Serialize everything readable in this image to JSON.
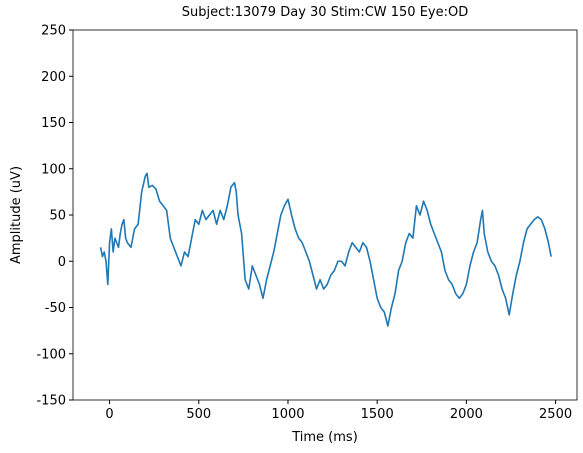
{
  "chart_data": {
    "type": "line",
    "title": "Subject:13079 Day 30 Stim:CW 150 Eye:OD",
    "xlabel": "Time (ms)",
    "ylabel": "Amplitude (uV)",
    "x": [
      -50,
      -40,
      -30,
      -20,
      -10,
      0,
      10,
      20,
      30,
      40,
      50,
      60,
      70,
      80,
      90,
      100,
      120,
      140,
      160,
      180,
      200,
      210,
      220,
      240,
      260,
      280,
      300,
      320,
      340,
      360,
      380,
      400,
      420,
      440,
      460,
      480,
      500,
      520,
      540,
      560,
      580,
      600,
      620,
      640,
      660,
      680,
      700,
      710,
      720,
      740,
      750,
      760,
      780,
      800,
      820,
      840,
      860,
      880,
      900,
      920,
      940,
      960,
      980,
      1000,
      1020,
      1040,
      1060,
      1080,
      1100,
      1120,
      1140,
      1160,
      1180,
      1200,
      1220,
      1240,
      1260,
      1280,
      1300,
      1320,
      1340,
      1360,
      1380,
      1400,
      1420,
      1440,
      1460,
      1480,
      1500,
      1520,
      1540,
      1560,
      1580,
      1600,
      1620,
      1640,
      1660,
      1680,
      1700,
      1720,
      1740,
      1760,
      1780,
      1800,
      1820,
      1840,
      1860,
      1880,
      1900,
      1920,
      1940,
      1960,
      1980,
      2000,
      2020,
      2040,
      2060,
      2080,
      2090,
      2100,
      2120,
      2140,
      2160,
      2180,
      2200,
      2220,
      2240,
      2260,
      2280,
      2300,
      2320,
      2340,
      2360,
      2380,
      2400,
      2420,
      2440,
      2460,
      2470,
      2475
    ],
    "series": [
      {
        "name": "amplitude",
        "color": "#1f77b4",
        "values": [
          15,
          5,
          10,
          0,
          -25,
          20,
          35,
          10,
          25,
          20,
          15,
          30,
          40,
          45,
          25,
          20,
          15,
          35,
          40,
          75,
          92,
          95,
          80,
          82,
          78,
          65,
          60,
          55,
          25,
          15,
          5,
          -5,
          10,
          5,
          25,
          45,
          40,
          55,
          45,
          50,
          55,
          40,
          55,
          45,
          60,
          80,
          85,
          75,
          50,
          30,
          5,
          -20,
          -30,
          -5,
          -15,
          -25,
          -40,
          -20,
          -5,
          10,
          30,
          50,
          60,
          67,
          50,
          35,
          25,
          20,
          10,
          0,
          -15,
          -30,
          -20,
          -30,
          -25,
          -15,
          -10,
          0,
          0,
          -5,
          10,
          20,
          15,
          10,
          20,
          15,
          0,
          -20,
          -40,
          -50,
          -55,
          -70,
          -50,
          -35,
          -10,
          0,
          20,
          30,
          25,
          60,
          50,
          65,
          55,
          40,
          30,
          20,
          10,
          -10,
          -20,
          -25,
          -35,
          -40,
          -35,
          -25,
          -5,
          10,
          20,
          45,
          55,
          30,
          10,
          0,
          -5,
          -15,
          -30,
          -40,
          -58,
          -35,
          -15,
          0,
          20,
          35,
          40,
          45,
          48,
          45,
          35,
          20,
          10,
          5
        ]
      }
    ],
    "xlim": [
      -205,
      2620
    ],
    "xticks": [
      0,
      500,
      1000,
      1500,
      2000,
      2500
    ],
    "ylim": [
      -150,
      250
    ],
    "yticks": [
      -150,
      -100,
      -50,
      0,
      50,
      100,
      150,
      200,
      250
    ],
    "grid": false
  }
}
